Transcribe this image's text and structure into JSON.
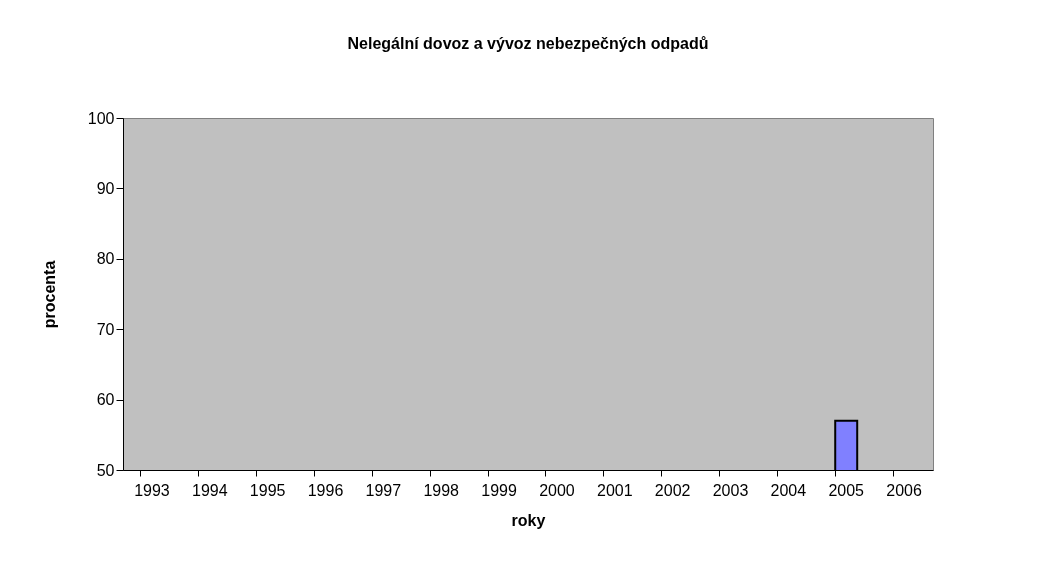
{
  "chart_data": {
    "type": "bar",
    "title": "Nelegální  dovoz a vývoz nebezpečných odpadů",
    "xlabel": "roky",
    "ylabel": "procenta",
    "categories": [
      "1993",
      "1994",
      "1995",
      "1996",
      "1997",
      "1998",
      "1999",
      "2000",
      "2001",
      "2002",
      "2003",
      "2004",
      "2005",
      "2006"
    ],
    "values": [
      null,
      null,
      null,
      null,
      null,
      null,
      null,
      null,
      null,
      null,
      null,
      null,
      57,
      null
    ],
    "color": "#8080ff",
    "ylim": [
      50,
      100
    ],
    "yticks": [
      50,
      60,
      70,
      80,
      90,
      100
    ],
    "grid": false
  }
}
